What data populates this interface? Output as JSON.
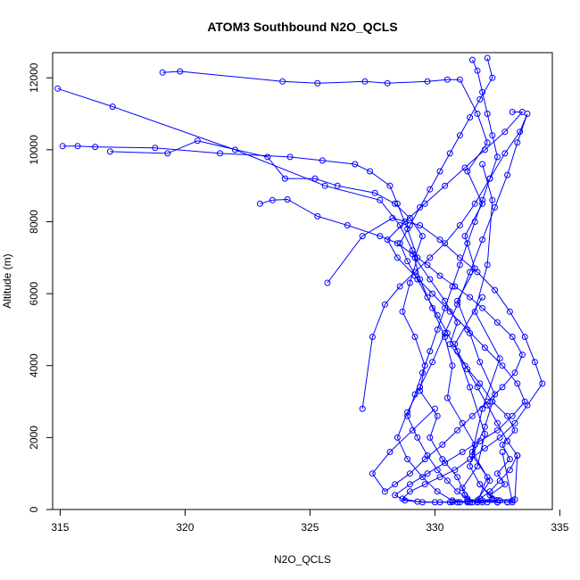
{
  "chart_data": {
    "type": "line",
    "title": "ATOM3 Southbound N2O_QCLS",
    "xlabel": "N2O_QCLS",
    "ylabel": "Altitude (m)",
    "xlim": [
      314.7,
      334.7
    ],
    "ylim": [
      0,
      12700
    ],
    "x_ticks": [
      315,
      320,
      325,
      330,
      335
    ],
    "y_ticks": [
      0,
      2000,
      4000,
      6000,
      8000,
      10000,
      12000
    ],
    "color": "#0000ff",
    "marker": "open-circle",
    "grid": false,
    "series": [
      {
        "x": [
          314.9,
          317.1,
          322.0,
          325.6,
          327.8,
          328.6,
          329.1,
          329.4,
          329.9,
          330.4,
          330.7,
          330.5,
          331.1,
          331.6,
          331.4,
          331.8,
          332.3,
          331.7,
          332.1,
          331.5,
          331.9,
          332.6,
          331.6,
          332.1,
          332.3,
          331.9
        ],
        "y": [
          11700,
          11200,
          10000,
          9000,
          8600,
          7900,
          7200,
          6400,
          5600,
          4800,
          4000,
          3100,
          2400,
          1800,
          1200,
          700,
          300,
          200,
          900,
          1600,
          2800,
          4200,
          5500,
          6800,
          8600,
          9600
        ]
      },
      {
        "x": [
          319.1,
          319.8,
          323.9,
          325.3,
          327.2,
          328.1,
          329.7,
          330.5,
          331.0,
          331.7,
          332.1,
          331.3,
          331.9,
          331.2,
          331.6,
          330.9,
          331.4,
          331.8,
          332.4,
          332.0,
          331.5,
          332.2,
          331.7,
          332.5,
          331.8
        ],
        "y": [
          12150,
          12180,
          11900,
          11850,
          11900,
          11850,
          11900,
          11950,
          11950,
          11000,
          10200,
          9400,
          8500,
          7600,
          6700,
          5800,
          4900,
          4100,
          3200,
          2300,
          1500,
          800,
          250,
          200,
          700
        ]
      },
      {
        "x": [
          315.1,
          315.7,
          316.4,
          318.8,
          321.4,
          324.2,
          325.5,
          326.8,
          327.4,
          328.2,
          328.5,
          328.9,
          329.3,
          329.0,
          328.7,
          329.2,
          329.6,
          329.4,
          330.1,
          329.8,
          330.3,
          330.9,
          331.2,
          331.5,
          331.1,
          331.7,
          332.0,
          331.4,
          330.8,
          331.9
        ],
        "y": [
          10100,
          10100,
          10080,
          10050,
          9900,
          9800,
          9700,
          9600,
          9400,
          9000,
          8500,
          7800,
          7000,
          6300,
          5500,
          4800,
          4000,
          3300,
          2600,
          2000,
          1400,
          900,
          400,
          200,
          600,
          1200,
          2100,
          3400,
          4600,
          5900
        ]
      },
      {
        "x": [
          317.0,
          319.3,
          320.5,
          323.3,
          324.0,
          325.2,
          326.1,
          327.6,
          328.4,
          329.0,
          329.5,
          329.2,
          329.8,
          330.4,
          330.9,
          330.6,
          331.2,
          331.8,
          332.3,
          332.9,
          333.2,
          332.7,
          333.0,
          332.5,
          332.8,
          332.2,
          332.6,
          333.1,
          332.9
        ],
        "y": [
          9950,
          9900,
          10250,
          9800,
          9200,
          9200,
          9000,
          8800,
          8500,
          8100,
          7600,
          7000,
          6400,
          5800,
          5200,
          4600,
          4000,
          3500,
          3000,
          2600,
          2200,
          1800,
          1400,
          1000,
          700,
          400,
          250,
          250,
          200
        ]
      },
      {
        "x": [
          323.0,
          323.5,
          324.1,
          325.3,
          326.5,
          327.8,
          328.5,
          329.1,
          329.7,
          330.2,
          330.8,
          331.4,
          331.9,
          332.5,
          333.1,
          333.5,
          333.2,
          332.7,
          332.1,
          331.5,
          330.9,
          330.3,
          329.6,
          329.0,
          328.4,
          328.0,
          327.5,
          328.2,
          329.1,
          330.0
        ],
        "y": [
          8500,
          8600,
          8620,
          8150,
          7900,
          7600,
          7400,
          7100,
          6800,
          6500,
          6200,
          5900,
          5600,
          5200,
          4800,
          4300,
          3800,
          3400,
          3000,
          2600,
          2200,
          1800,
          1400,
          1000,
          700,
          500,
          1000,
          1600,
          2200,
          2800
        ]
      },
      {
        "x": [
          325.7,
          327.1,
          328.3,
          329.4,
          330.2,
          331.0,
          331.7,
          332.4,
          333.0,
          333.6,
          334.0,
          334.3,
          333.7,
          333.2,
          332.6,
          332.0,
          331.4,
          330.8,
          330.2,
          329.6,
          329.0,
          328.7,
          329.3,
          330.0,
          330.7,
          331.3,
          331.9,
          332.5,
          333.2,
          333.3
        ],
        "y": [
          6300,
          7600,
          8100,
          7900,
          7500,
          7000,
          6600,
          6100,
          5500,
          4800,
          4100,
          3500,
          2900,
          2400,
          2000,
          1700,
          1400,
          1100,
          900,
          700,
          500,
          300,
          220,
          200,
          210,
          230,
          250,
          260,
          280,
          1500
        ]
      },
      {
        "x": [
          327.1,
          327.5,
          328.0,
          328.6,
          329.2,
          329.8,
          330.4,
          331.0,
          331.6,
          332.2,
          332.8,
          333.4,
          333.7,
          333.3,
          332.9,
          332.4,
          331.9,
          331.4,
          330.9,
          330.4,
          329.9,
          329.4,
          328.9,
          328.5,
          328.9,
          329.5,
          330.1,
          330.7,
          331.3,
          331.9
        ],
        "y": [
          2800,
          4800,
          5700,
          6200,
          6600,
          7000,
          7400,
          7900,
          8500,
          9200,
          9900,
          10500,
          11000,
          10200,
          9300,
          8400,
          7500,
          6600,
          5700,
          4900,
          4100,
          3400,
          2700,
          2000,
          1400,
          900,
          500,
          250,
          200,
          200
        ]
      },
      {
        "x": [
          331.5,
          331.7,
          331.9,
          332.1,
          332.3,
          332.5,
          332.2,
          331.9,
          331.6,
          331.3,
          331.0,
          330.7,
          330.4,
          330.1,
          329.8,
          329.5,
          329.2,
          328.9,
          329.3,
          329.7,
          330.1,
          330.5,
          330.9,
          331.3,
          331.7,
          332.1,
          332.5,
          332.9,
          333.1,
          332.7
        ],
        "y": [
          12500,
          12200,
          11600,
          11000,
          10400,
          9800,
          9200,
          8600,
          8000,
          7400,
          6800,
          6200,
          5600,
          5000,
          4400,
          3800,
          3200,
          2600,
          2000,
          1500,
          1100,
          800,
          500,
          300,
          200,
          200,
          200,
          200,
          200,
          1600
        ]
      },
      {
        "x": [
          332.1,
          332.3,
          331.8,
          331.4,
          331.0,
          330.6,
          330.2,
          329.8,
          329.4,
          329.0,
          328.6,
          328.9,
          329.3,
          329.7,
          330.1,
          330.5,
          330.9,
          331.3,
          331.7,
          332.1,
          332.5,
          332.9,
          333.3,
          333.0,
          332.6,
          332.2,
          331.8,
          331.4,
          331.0,
          330.6
        ],
        "y": [
          12550,
          12000,
          11400,
          10900,
          10400,
          9900,
          9400,
          8900,
          8400,
          7900,
          7400,
          6900,
          6400,
          5900,
          5400,
          4900,
          4400,
          3900,
          3400,
          2900,
          2400,
          1900,
          1500,
          1100,
          800,
          500,
          300,
          200,
          200,
          200
        ]
      },
      {
        "x": [
          333.1,
          333.5,
          332.8,
          332.0,
          331.2,
          330.4,
          329.6,
          328.8,
          328.1,
          328.5,
          329.2,
          329.9,
          330.6,
          331.3,
          332.0,
          332.7,
          333.3,
          333.6,
          333.1,
          332.5,
          331.8,
          331.1,
          330.4,
          329.7,
          329.0,
          328.4,
          328.8,
          329.5,
          330.2,
          330.9
        ],
        "y": [
          11050,
          11050,
          10500,
          10000,
          9500,
          9000,
          8500,
          8000,
          7500,
          7000,
          6500,
          6000,
          5500,
          5000,
          4500,
          4000,
          3500,
          3000,
          2600,
          2200,
          1900,
          1600,
          1300,
          1000,
          700,
          400,
          250,
          200,
          200,
          200
        ]
      }
    ]
  }
}
